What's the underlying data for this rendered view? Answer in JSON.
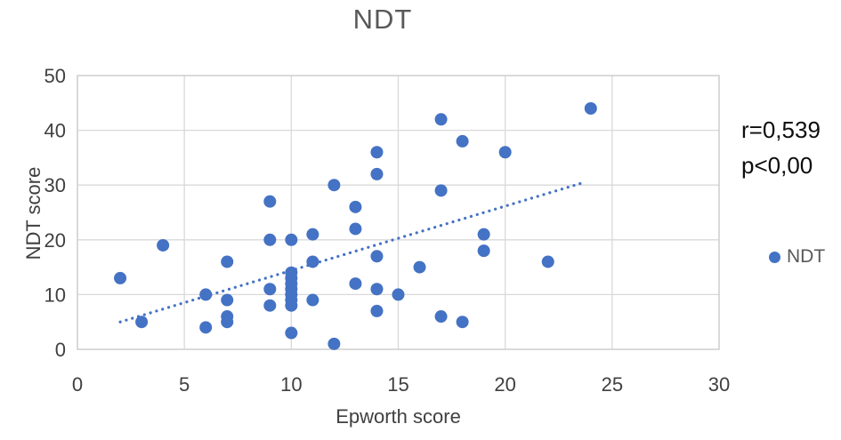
{
  "title": "NDT",
  "annotation": {
    "line1": "r=0,539",
    "line2": "p<0,00"
  },
  "legend": {
    "label": "NDT"
  },
  "colors": {
    "dot": "#4472c4",
    "trend": "#4472c4",
    "grid": "#d9d9d9",
    "border": "#d0d0d0",
    "axis_text": "#404040",
    "title_text": "#595959",
    "annotation_text": "#0d0d0d",
    "legend_text": "#595959"
  },
  "chart_data": {
    "type": "scatter",
    "title": "NDT",
    "xlabel": "Epworth score",
    "ylabel": "NDT score",
    "xlim": [
      0,
      30
    ],
    "ylim": [
      0,
      50
    ],
    "xticks": [
      0,
      5,
      10,
      15,
      20,
      25,
      30
    ],
    "yticks": [
      0,
      10,
      20,
      30,
      40,
      50
    ],
    "grid": true,
    "legend_position": "right",
    "annotations": [
      "r=0,539",
      "p<0,00"
    ],
    "series": [
      {
        "name": "NDT",
        "points": [
          [
            2,
            13
          ],
          [
            3,
            5
          ],
          [
            4,
            19
          ],
          [
            6,
            10
          ],
          [
            6,
            4
          ],
          [
            7,
            16
          ],
          [
            7,
            9
          ],
          [
            7,
            6
          ],
          [
            7,
            5
          ],
          [
            9,
            27
          ],
          [
            9,
            20
          ],
          [
            9,
            11
          ],
          [
            9,
            8
          ],
          [
            10,
            20
          ],
          [
            10,
            14
          ],
          [
            10,
            13
          ],
          [
            10,
            12
          ],
          [
            10,
            11
          ],
          [
            10,
            10
          ],
          [
            10,
            9
          ],
          [
            10,
            8
          ],
          [
            10,
            3
          ],
          [
            11,
            21
          ],
          [
            11,
            16
          ],
          [
            11,
            9
          ],
          [
            12,
            30
          ],
          [
            12,
            1
          ],
          [
            13,
            26
          ],
          [
            13,
            22
          ],
          [
            13,
            12
          ],
          [
            14,
            36
          ],
          [
            14,
            32
          ],
          [
            14,
            17
          ],
          [
            14,
            11
          ],
          [
            14,
            7
          ],
          [
            15,
            10
          ],
          [
            16,
            15
          ],
          [
            17,
            42
          ],
          [
            17,
            29
          ],
          [
            17,
            6
          ],
          [
            18,
            38
          ],
          [
            18,
            5
          ],
          [
            19,
            21
          ],
          [
            19,
            18
          ],
          [
            20,
            36
          ],
          [
            22,
            16
          ],
          [
            24,
            44
          ]
        ]
      }
    ],
    "trendline": {
      "style": "dotted",
      "x1": 2,
      "y1": 5,
      "x2": 23.7,
      "y2": 30.5
    }
  }
}
